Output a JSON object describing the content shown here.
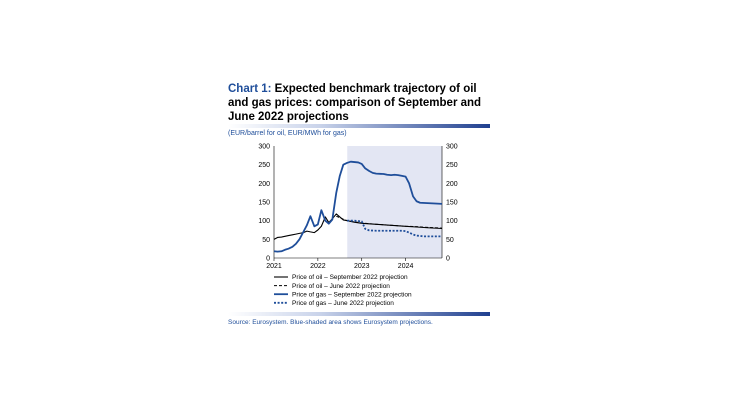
{
  "title": {
    "prefix": "Chart 1:",
    "text": "Expected benchmark trajectory of oil and gas prices: comparison of September and June 2022 projections"
  },
  "units_note": "(EUR/barrel for oil, EUR/MWh for gas)",
  "source": "Source: Eurosystem. Blue-shaded area shows Eurosystem projections.",
  "colors": {
    "accent": "#1f4e9a",
    "oil": "#000000",
    "gas": "#1f4e9a",
    "projection_shade": "#e3e6f3"
  },
  "chart_data": {
    "type": "line",
    "x_ticks": [
      "2021",
      "2022",
      "2023",
      "2024"
    ],
    "xlim": [
      2021.0,
      2024.83
    ],
    "ylim": [
      0,
      300
    ],
    "y_ticks_left": [
      "0",
      "50",
      "100",
      "150",
      "200",
      "250",
      "300"
    ],
    "y_ticks_right": [
      "0",
      "50",
      "100",
      "150",
      "200",
      "250",
      "300"
    ],
    "projection_shading": {
      "from": 2022.67,
      "to": 2024.83
    },
    "legend_placement": "bottom",
    "series": [
      {
        "name": "Price of oil – September 2022 projection",
        "style": "solid",
        "color": "#000000",
        "width": 1.1,
        "points": [
          [
            2021.0,
            50
          ],
          [
            2021.08,
            55
          ],
          [
            2021.17,
            56
          ],
          [
            2021.25,
            58
          ],
          [
            2021.33,
            60
          ],
          [
            2021.42,
            62
          ],
          [
            2021.5,
            64
          ],
          [
            2021.58,
            66
          ],
          [
            2021.67,
            68
          ],
          [
            2021.75,
            72
          ],
          [
            2021.83,
            70
          ],
          [
            2021.92,
            68
          ],
          [
            2022.0,
            75
          ],
          [
            2022.08,
            85
          ],
          [
            2022.17,
            110
          ],
          [
            2022.25,
            95
          ],
          [
            2022.33,
            105
          ],
          [
            2022.42,
            118
          ],
          [
            2022.5,
            110
          ],
          [
            2022.58,
            102
          ],
          [
            2022.67,
            100
          ],
          [
            2022.83,
            96
          ],
          [
            2023.0,
            93
          ],
          [
            2023.25,
            91
          ],
          [
            2023.5,
            89
          ],
          [
            2023.75,
            87
          ],
          [
            2024.0,
            85
          ],
          [
            2024.25,
            83
          ],
          [
            2024.5,
            81
          ],
          [
            2024.83,
            79
          ]
        ]
      },
      {
        "name": "Price of oil – June 2022 projection",
        "style": "dashed",
        "color": "#000000",
        "width": 1.0,
        "points": [
          [
            2022.42,
            112
          ],
          [
            2022.5,
            108
          ],
          [
            2022.58,
            104
          ],
          [
            2022.67,
            100
          ],
          [
            2022.83,
            97
          ],
          [
            2023.0,
            94
          ],
          [
            2023.25,
            91
          ],
          [
            2023.5,
            89
          ],
          [
            2023.75,
            87
          ],
          [
            2024.0,
            85
          ],
          [
            2024.25,
            84
          ],
          [
            2024.5,
            82
          ],
          [
            2024.83,
            80
          ]
        ]
      },
      {
        "name": "Price of gas – September 2022 projection",
        "style": "solid",
        "color": "#1f4e9a",
        "width": 1.8,
        "points": [
          [
            2021.0,
            18
          ],
          [
            2021.08,
            17
          ],
          [
            2021.17,
            18
          ],
          [
            2021.25,
            22
          ],
          [
            2021.33,
            25
          ],
          [
            2021.42,
            30
          ],
          [
            2021.5,
            38
          ],
          [
            2021.58,
            50
          ],
          [
            2021.67,
            70
          ],
          [
            2021.75,
            88
          ],
          [
            2021.83,
            112
          ],
          [
            2021.92,
            85
          ],
          [
            2022.0,
            90
          ],
          [
            2022.08,
            128
          ],
          [
            2022.17,
            100
          ],
          [
            2022.25,
            92
          ],
          [
            2022.33,
            103
          ],
          [
            2022.42,
            175
          ],
          [
            2022.5,
            220
          ],
          [
            2022.58,
            250
          ],
          [
            2022.67,
            255
          ],
          [
            2022.75,
            258
          ],
          [
            2022.92,
            256
          ],
          [
            2023.0,
            252
          ],
          [
            2023.08,
            240
          ],
          [
            2023.17,
            233
          ],
          [
            2023.25,
            228
          ],
          [
            2023.33,
            226
          ],
          [
            2023.5,
            225
          ],
          [
            2023.58,
            223
          ],
          [
            2023.67,
            222
          ],
          [
            2023.75,
            223
          ],
          [
            2023.83,
            222
          ],
          [
            2023.92,
            220
          ],
          [
            2024.0,
            218
          ],
          [
            2024.08,
            200
          ],
          [
            2024.17,
            165
          ],
          [
            2024.25,
            152
          ],
          [
            2024.33,
            148
          ],
          [
            2024.5,
            147
          ],
          [
            2024.67,
            146
          ],
          [
            2024.83,
            145
          ]
        ]
      },
      {
        "name": "Price of gas – June 2022 projection",
        "style": "dotted",
        "color": "#1f4e9a",
        "width": 1.8,
        "points": [
          [
            2022.67,
            100
          ],
          [
            2022.83,
            100
          ],
          [
            2022.92,
            99
          ],
          [
            2023.0,
            98
          ],
          [
            2023.08,
            78
          ],
          [
            2023.17,
            74
          ],
          [
            2023.33,
            73
          ],
          [
            2023.5,
            73
          ],
          [
            2023.67,
            73
          ],
          [
            2023.83,
            73
          ],
          [
            2023.92,
            73
          ],
          [
            2024.0,
            72
          ],
          [
            2024.08,
            68
          ],
          [
            2024.17,
            63
          ],
          [
            2024.25,
            60
          ],
          [
            2024.42,
            58
          ],
          [
            2024.58,
            58
          ],
          [
            2024.83,
            58
          ]
        ]
      }
    ]
  }
}
